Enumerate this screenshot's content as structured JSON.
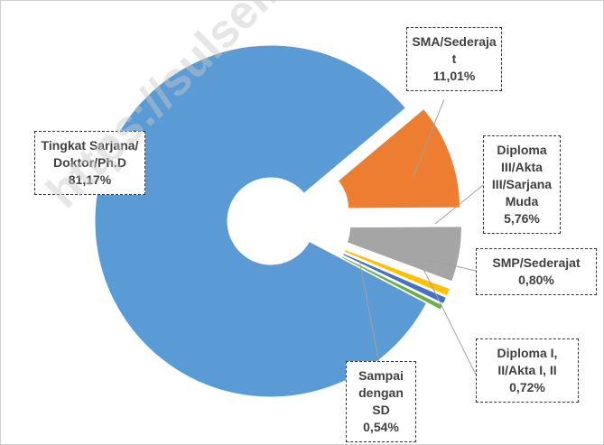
{
  "chart_data": {
    "type": "doughnut",
    "categories": [
      "SMA/Sederajat",
      "Diploma III/Akta III/Sarjana Muda",
      "SMP/Sederajat",
      "Diploma I, II/Akta I, II",
      "Sampai dengan SD",
      "Tingkat Sarjana/Doktor/Ph.D"
    ],
    "values": [
      11.01,
      5.76,
      0.8,
      0.72,
      0.54,
      81.17
    ],
    "value_labels": [
      "11,01%",
      "5,76%",
      "0,80%",
      "0,72%",
      "0,54%",
      "81,17%"
    ],
    "colors": [
      "#ed7d31",
      "#a5a5a5",
      "#ffc000",
      "#4472c4",
      "#70ad47",
      "#5b9bd5"
    ],
    "watermark": "https://sulsel.bps.go.id"
  }
}
